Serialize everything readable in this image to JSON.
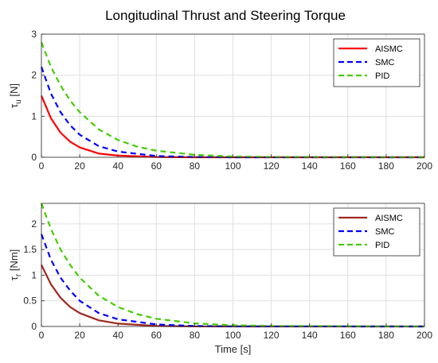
{
  "title": "Longitudinal Thrust and Steering Torque",
  "colors": {
    "AISMC_top": "#ff0000",
    "AISMC_bottom": "#a0281e",
    "SMC": "#0000ff",
    "PID": "#44cc00"
  },
  "chart_data": [
    {
      "type": "line",
      "ylabel_main": "τ",
      "ylabel_sub": "u",
      "ylabel_unit": "[N]",
      "xlabel": "",
      "xlim": [
        0,
        200
      ],
      "ylim": [
        0,
        3
      ],
      "xticks": [
        0,
        20,
        40,
        60,
        80,
        100,
        120,
        140,
        160,
        180,
        200
      ],
      "yticks": [
        0,
        1,
        2,
        3
      ],
      "grid": true,
      "legend_position": "top-right",
      "series": [
        {
          "name": "AISMC",
          "style": "solid",
          "color": "#ff0000",
          "x": [
            0,
            5,
            10,
            15,
            20,
            30,
            40,
            60,
            80,
            100,
            200
          ],
          "y": [
            1.5,
            0.95,
            0.6,
            0.38,
            0.24,
            0.09,
            0.04,
            0.005,
            0,
            0,
            0
          ]
        },
        {
          "name": "SMC",
          "style": "dashed",
          "color": "#0000ff",
          "x": [
            0,
            5,
            10,
            15,
            20,
            30,
            40,
            60,
            80,
            100,
            200
          ],
          "y": [
            2.2,
            1.55,
            1.1,
            0.78,
            0.55,
            0.27,
            0.14,
            0.03,
            0.005,
            0,
            0
          ]
        },
        {
          "name": "PID",
          "style": "dashed",
          "color": "#44cc00",
          "x": [
            0,
            5,
            10,
            15,
            20,
            30,
            40,
            50,
            60,
            80,
            100,
            120,
            200
          ],
          "y": [
            2.8,
            2.2,
            1.75,
            1.38,
            1.1,
            0.68,
            0.42,
            0.26,
            0.16,
            0.06,
            0.02,
            0.005,
            0
          ]
        }
      ]
    },
    {
      "type": "line",
      "ylabel_main": "τ",
      "ylabel_sub": "r",
      "ylabel_unit": "[Nm]",
      "xlabel": "Time [s]",
      "xlim": [
        0,
        200
      ],
      "ylim": [
        0,
        2.4
      ],
      "xticks": [
        0,
        20,
        40,
        60,
        80,
        100,
        120,
        140,
        160,
        180,
        200
      ],
      "yticks": [
        0,
        0.5,
        1,
        1.5,
        2
      ],
      "grid": true,
      "legend_position": "top-right",
      "series": [
        {
          "name": "AISMC",
          "style": "solid",
          "color": "#a0281e",
          "x": [
            0,
            5,
            10,
            15,
            20,
            30,
            40,
            60,
            80,
            100,
            200
          ],
          "y": [
            1.2,
            0.82,
            0.56,
            0.38,
            0.26,
            0.12,
            0.055,
            0.01,
            0.002,
            0,
            0
          ]
        },
        {
          "name": "SMC",
          "style": "dashed",
          "color": "#0000ff",
          "x": [
            0,
            5,
            10,
            15,
            20,
            30,
            40,
            60,
            80,
            100,
            200
          ],
          "y": [
            1.8,
            1.3,
            0.95,
            0.7,
            0.5,
            0.26,
            0.14,
            0.04,
            0.01,
            0.002,
            0
          ]
        },
        {
          "name": "PID",
          "style": "dashed",
          "color": "#44cc00",
          "x": [
            0,
            5,
            10,
            15,
            20,
            30,
            40,
            50,
            60,
            80,
            100,
            120,
            200
          ],
          "y": [
            2.4,
            1.9,
            1.5,
            1.2,
            0.95,
            0.6,
            0.38,
            0.24,
            0.15,
            0.06,
            0.025,
            0.01,
            0
          ]
        }
      ]
    }
  ]
}
